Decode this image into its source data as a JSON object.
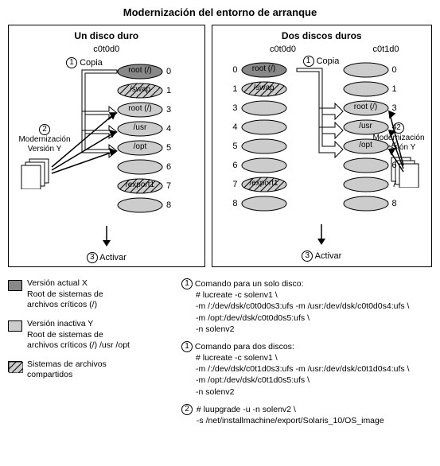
{
  "title": "Modernización del entorno de arranque",
  "panelLeft": {
    "title": "Un disco duro",
    "disk": "c0t0d0",
    "copia": "Copia",
    "stepCopy": "1",
    "stepMod": "2",
    "stepAct": "3",
    "sideLabel1": "Modernización",
    "sideLabel2": "Versión Y",
    "activate": "Activar"
  },
  "panelRight": {
    "title": "Dos discos duros",
    "diskA": "c0t0d0",
    "diskB": "c0t1d0",
    "copia": "Copia",
    "stepCopy": "1",
    "stepMod": "2",
    "stepAct": "3",
    "sideLabel1": "Modernización",
    "sideLabel2": "Versión Y",
    "activate": "Activar"
  },
  "colors": {
    "dark": "#888888",
    "light": "#cccccc",
    "stroke": "#000000",
    "hatchBg": "#cccccc"
  },
  "slices": {
    "leftSingle": [
      {
        "idx": "0",
        "label": "root (/)",
        "fill": "dark"
      },
      {
        "idx": "1",
        "label": "/swap",
        "fill": "hatch"
      },
      {
        "idx": "3",
        "label": "root (/)",
        "fill": "light"
      },
      {
        "idx": "4",
        "label": "/usr",
        "fill": "light"
      },
      {
        "idx": "5",
        "label": "/opt",
        "fill": "light"
      },
      {
        "idx": "6",
        "label": "",
        "fill": "light"
      },
      {
        "idx": "7",
        "label": "/export1",
        "fill": "hatch"
      },
      {
        "idx": "8",
        "label": "",
        "fill": "light"
      }
    ],
    "rightA": [
      {
        "idx": "0",
        "label": "root (/)",
        "fill": "dark"
      },
      {
        "idx": "1",
        "label": "/swap",
        "fill": "hatch"
      },
      {
        "idx": "3",
        "label": "",
        "fill": "light"
      },
      {
        "idx": "4",
        "label": "",
        "fill": "light"
      },
      {
        "idx": "5",
        "label": "",
        "fill": "light"
      },
      {
        "idx": "6",
        "label": "",
        "fill": "light"
      },
      {
        "idx": "7",
        "label": "/export1",
        "fill": "hatch"
      },
      {
        "idx": "8",
        "label": "",
        "fill": "light"
      }
    ],
    "rightB": [
      {
        "idx": "0",
        "label": "",
        "fill": "light"
      },
      {
        "idx": "1",
        "label": "",
        "fill": "light"
      },
      {
        "idx": "3",
        "label": "root (/)",
        "fill": "light"
      },
      {
        "idx": "4",
        "label": "/usr",
        "fill": "light"
      },
      {
        "idx": "5",
        "label": "/opt",
        "fill": "light"
      },
      {
        "idx": "6",
        "label": "",
        "fill": "light"
      },
      {
        "idx": "7",
        "label": "",
        "fill": "light"
      },
      {
        "idx": "8",
        "label": "",
        "fill": "light"
      }
    ]
  },
  "legend": {
    "sw1": "Versión actual X\nRoot de sistemas de\narchivos críticos (/)",
    "sw2": "Versión inactiva Y\nRoot de sistemas de\narchivos críticos (/) /usr /opt",
    "sw3": "Sistemas de archivos\ncompartidos"
  },
  "cmds": {
    "g1title": "Comando para un solo disco:",
    "g1": [
      "# lucreate -c solenv1 \\",
      "-m /:/dev/dsk/c0t0d0s3:ufs -m /usr:/dev/dsk/c0t0d0s4:ufs \\",
      "-m /opt:/dev/dsk/c0t0d0s5:ufs \\",
      "-n solenv2"
    ],
    "g2title": "Comando para dos discos:",
    "g2": [
      "# lucreate -c solenv1 \\",
      "-m /:/dev/dsk/c0t1d0s3:ufs -m /usr:/dev/dsk/c0t1d0s4:ufs \\",
      "-m /opt:/dev/dsk/c0t1d0s5:ufs \\",
      "-n solenv2"
    ],
    "g3": [
      "# luupgrade -u -n solenv2 \\",
      "-s /net/installmachine/export/Solaris_10/OS_image"
    ]
  }
}
